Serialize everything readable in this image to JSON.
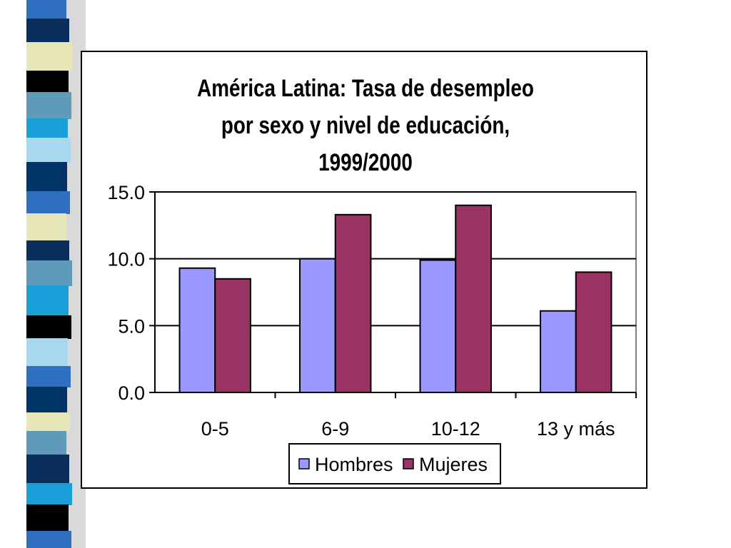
{
  "colors": {
    "hombres": "#9999ff",
    "mujeres": "#993366",
    "stripe_palette": [
      "#2f6fbf",
      "#0a2f5c",
      "#e6e6b8",
      "#000000",
      "#5f9ab8",
      "#1aa0d8",
      "#a8d8f0",
      "#003366"
    ]
  },
  "chart_data": {
    "type": "bar",
    "title_lines": [
      "América Latina: Tasa de desempleo",
      "por sexo y nivel de educación,",
      "1999/2000"
    ],
    "categories": [
      "0-5",
      "6-9",
      "10-12",
      "13 y más"
    ],
    "series": [
      {
        "name": "Hombres",
        "values": [
          9.3,
          10.0,
          9.9,
          6.1
        ]
      },
      {
        "name": "Mujeres",
        "values": [
          8.5,
          13.3,
          14.0,
          9.0
        ]
      }
    ],
    "ylim": [
      0,
      15
    ],
    "yticks": [
      "0.0",
      "5.0",
      "10.0",
      "15.0"
    ],
    "grid": true,
    "legend": "bottom"
  }
}
